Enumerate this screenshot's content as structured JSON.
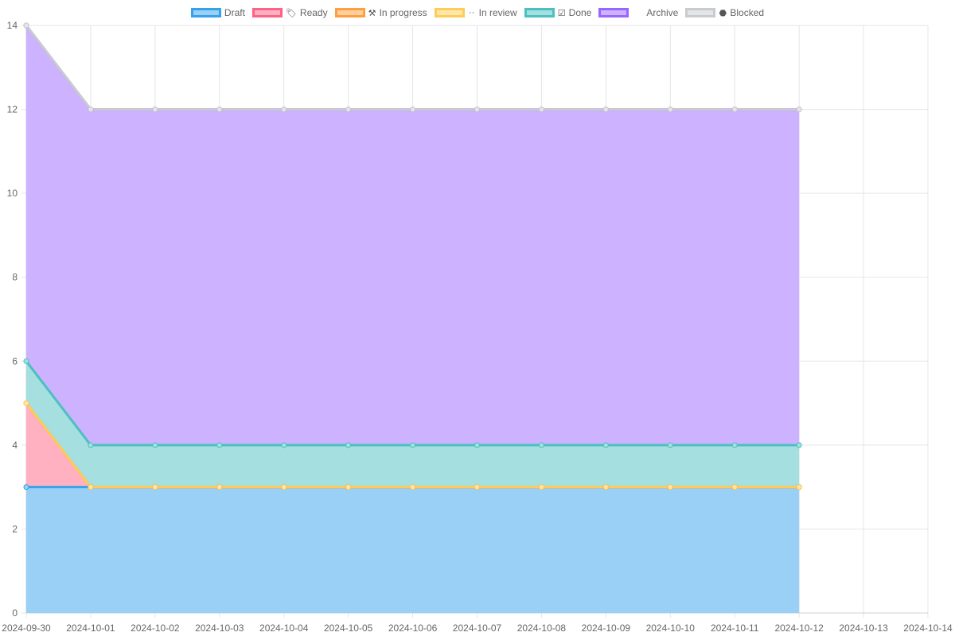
{
  "chart_data": {
    "type": "area",
    "stacked": true,
    "title": "",
    "xlabel": "",
    "ylabel": "",
    "x_axis_ticks": [
      "2024-09-30",
      "2024-10-01",
      "2024-10-02",
      "2024-10-03",
      "2024-10-04",
      "2024-10-05",
      "2024-10-06",
      "2024-10-07",
      "2024-10-08",
      "2024-10-09",
      "2024-10-10",
      "2024-10-11",
      "2024-10-12",
      "2024-10-13",
      "2024-10-14"
    ],
    "x": [
      "2024-09-30",
      "2024-10-01",
      "2024-10-02",
      "2024-10-03",
      "2024-10-04",
      "2024-10-05",
      "2024-10-06",
      "2024-10-07",
      "2024-10-08",
      "2024-10-09",
      "2024-10-10",
      "2024-10-11",
      "2024-10-12"
    ],
    "ylim": [
      0,
      14
    ],
    "y_ticks": [
      0,
      2,
      4,
      6,
      8,
      10,
      12,
      14
    ],
    "grid": true,
    "legend_position": "top-center",
    "series": [
      {
        "name": "Draft",
        "icon": "",
        "color": "#36a2eb",
        "fill": "#9ad0f5",
        "values": [
          3,
          3,
          3,
          3,
          3,
          3,
          3,
          3,
          3,
          3,
          3,
          3,
          3
        ]
      },
      {
        "name": "Ready",
        "icon": "tag-icon",
        "color": "#ff6384",
        "fill": "#ffb1c1",
        "values": [
          2,
          0,
          0,
          0,
          0,
          0,
          0,
          0,
          0,
          0,
          0,
          0,
          0
        ]
      },
      {
        "name": "In progress",
        "icon": "worker-icon",
        "color": "#ff9f40",
        "fill": "#ffcf9f",
        "values": [
          0,
          0,
          0,
          0,
          0,
          0,
          0,
          0,
          0,
          0,
          0,
          0,
          0
        ]
      },
      {
        "name": "In review",
        "icon": "eyes-icon",
        "color": "#ffcd56",
        "fill": "#ffe6aa",
        "values": [
          0,
          0,
          0,
          0,
          0,
          0,
          0,
          0,
          0,
          0,
          0,
          0,
          0
        ]
      },
      {
        "name": "Done",
        "icon": "checkbox-icon",
        "color": "#4bc0c0",
        "fill": "#a5dfdf",
        "values": [
          1,
          1,
          1,
          1,
          1,
          1,
          1,
          1,
          1,
          1,
          1,
          1,
          1
        ]
      },
      {
        "name": "Archive",
        "icon": "",
        "color": "#9966ff",
        "fill": "#ccb2ff",
        "values": [
          8,
          8,
          8,
          8,
          8,
          8,
          8,
          8,
          8,
          8,
          8,
          8,
          8
        ]
      },
      {
        "name": "Blocked",
        "icon": "stop-icon",
        "color": "#c9cbcf",
        "fill": "#e4e5e7",
        "values": [
          0,
          0,
          0,
          0,
          0,
          0,
          0,
          0,
          0,
          0,
          0,
          0,
          0
        ]
      }
    ]
  }
}
